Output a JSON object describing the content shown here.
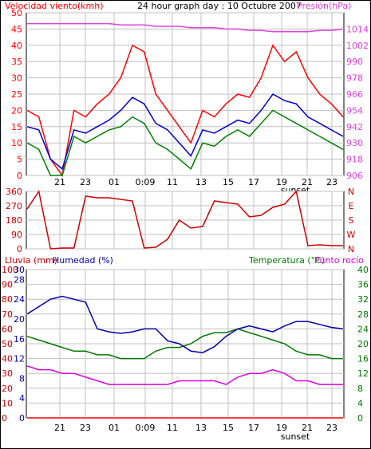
{
  "header": {
    "wind_label": "Velocidad viento(kmh)",
    "title": "24 hour graph day : 10 Octubre 2007",
    "pressure_label": "Presión(hPa)"
  },
  "panel3_header": {
    "rain_label": "Lluvia (mm)",
    "humidity_label": "Humedad (%)",
    "temperature_label": "Temperatura (°C)",
    "dewpoint_label": "Punto rocío"
  },
  "x_tick_labels": [
    "21",
    "23",
    "01",
    "0:09",
    "11",
    "13",
    "15",
    "17",
    "19",
    "21",
    "23"
  ],
  "sunset_label": "sunset",
  "colors": {
    "wind_gust": "#ff0000",
    "wind_speed": "#008000",
    "wind_avg": "#0000cc",
    "pressure": "#e040e0",
    "direction": "#cc0000",
    "humidity": "#0000aa",
    "temperature": "#007700",
    "dewpoint": "#dd00dd",
    "rain": "#ff0000",
    "grid": "#c0c0c0",
    "frame": "#000000"
  },
  "chart_data": [
    {
      "type": "line",
      "x": [
        0,
        1,
        2,
        3,
        4,
        5,
        6,
        7,
        8,
        9,
        10,
        11,
        12,
        13,
        14,
        15,
        16,
        17,
        18,
        19,
        20,
        21,
        22,
        23,
        24,
        25,
        26,
        27
      ],
      "series": [
        {
          "name": "gust",
          "values": [
            20,
            18,
            5,
            0,
            20,
            18,
            22,
            25,
            30,
            40,
            38,
            25,
            20,
            15,
            10,
            20,
            18,
            22,
            25,
            24,
            30,
            40,
            35,
            38,
            30,
            25,
            22,
            18
          ]
        },
        {
          "name": "wind speed",
          "values": [
            10,
            8,
            0,
            0,
            12,
            10,
            12,
            14,
            15,
            18,
            16,
            10,
            8,
            5,
            2,
            10,
            9,
            12,
            14,
            12,
            16,
            20,
            18,
            16,
            14,
            12,
            10,
            8
          ]
        },
        {
          "name": "wind avg",
          "values": [
            15,
            14,
            5,
            2,
            14,
            13,
            15,
            17,
            20,
            24,
            22,
            16,
            14,
            10,
            6,
            14,
            13,
            15,
            17,
            16,
            20,
            25,
            23,
            22,
            18,
            16,
            14,
            12
          ]
        },
        {
          "name": "pressure",
          "values": [
            1018,
            1018,
            1018,
            1018,
            1018,
            1018,
            1018,
            1018,
            1017,
            1017,
            1017,
            1016,
            1016,
            1016,
            1015,
            1015,
            1015,
            1014,
            1014,
            1013,
            1013,
            1012,
            1012,
            1012,
            1012,
            1013,
            1013,
            1014
          ]
        }
      ],
      "ylim_left": [
        0,
        50
      ],
      "yticks_left": [
        0,
        5,
        10,
        15,
        20,
        25,
        30,
        35,
        40,
        45,
        50
      ],
      "ylim_right": [
        906,
        1026
      ],
      "yticks_right": [
        906,
        918,
        930,
        942,
        954,
        966,
        978,
        990,
        1002,
        1014
      ],
      "grid": true
    },
    {
      "type": "line",
      "series": [
        {
          "name": "direction",
          "values": [
            250,
            360,
            0,
            5,
            5,
            330,
            320,
            320,
            310,
            300,
            5,
            10,
            60,
            180,
            130,
            140,
            300,
            290,
            280,
            200,
            210,
            260,
            280,
            360,
            20,
            25,
            20,
            20
          ]
        }
      ],
      "ylim": [
        0,
        360
      ],
      "yticks": [
        0,
        90,
        180,
        270,
        360
      ],
      "right_labels": [
        "N",
        "W",
        "S",
        "E",
        "N"
      ],
      "grid": true
    },
    {
      "type": "line",
      "series": [
        {
          "name": "humidity",
          "values": [
            70,
            75,
            80,
            82,
            80,
            78,
            60,
            58,
            57,
            58,
            60,
            60,
            52,
            50,
            45,
            44,
            48,
            55,
            60,
            62,
            60,
            58,
            62,
            65,
            65,
            63,
            61,
            60
          ]
        },
        {
          "name": "temperature",
          "values": [
            22,
            21,
            20,
            19,
            18,
            18,
            17,
            17,
            16,
            16,
            16,
            18,
            19,
            19,
            20,
            22,
            23,
            23,
            24,
            23,
            22,
            21,
            20,
            18,
            17,
            17,
            16,
            16
          ]
        },
        {
          "name": "dewpoint",
          "values": [
            14,
            13,
            13,
            12,
            12,
            11,
            10,
            9,
            9,
            9,
            9,
            9,
            9,
            10,
            10,
            10,
            10,
            9,
            11,
            12,
            12,
            13,
            12,
            10,
            10,
            9,
            9,
            9
          ]
        },
        {
          "name": "rain",
          "values": [
            0,
            0,
            0,
            0,
            0,
            0,
            0,
            0,
            0,
            0,
            0,
            0,
            0,
            0,
            0,
            0,
            0,
            0,
            0,
            0,
            0,
            0,
            0,
            0,
            0,
            0,
            0,
            0
          ]
        }
      ],
      "ylim_rain": [
        0,
        100
      ],
      "yticks_rain": [
        0,
        10,
        20,
        30,
        40,
        50,
        60,
        70,
        80,
        90,
        100
      ],
      "ylim_humidity": [
        0,
        30
      ],
      "yticks_humidity": [
        0,
        4,
        8,
        12,
        16,
        20,
        24,
        28,
        30
      ],
      "ylim_temp": [
        0,
        40
      ],
      "yticks_temp": [
        0,
        4,
        8,
        12,
        16,
        20,
        24,
        28,
        32,
        36,
        40
      ],
      "grid": true
    }
  ]
}
